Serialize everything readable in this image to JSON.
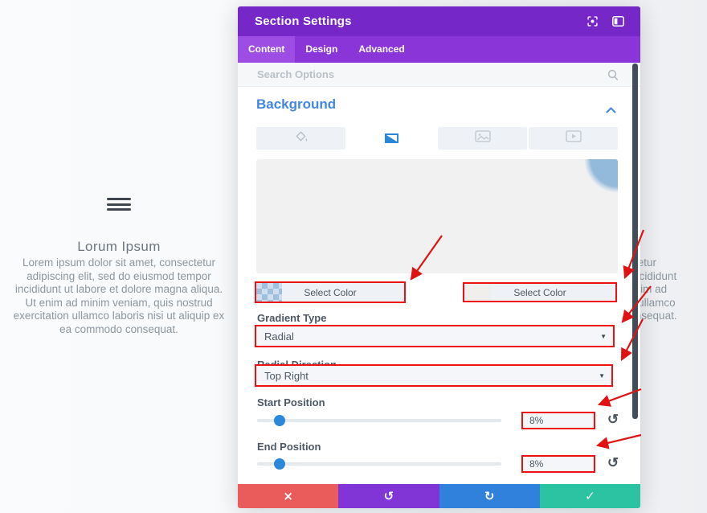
{
  "page": {
    "heading": "Lorum Ipsum",
    "paragraph": "Lorem ipsum dolor sit amet, consectetur adipiscing elit, sed do eiusmod tempor incididunt ut labore et dolore magna aliqua. Ut enim ad minim veniam, quis nostrud exercitation ullamco laboris nisi ut aliquip ex ea commodo consequat."
  },
  "modal": {
    "title": "Section Settings",
    "tabs": {
      "content": "Content",
      "design": "Design",
      "advanced": "Advanced",
      "active": "Content"
    },
    "search": {
      "placeholder": "Search Options"
    },
    "section": {
      "title": "Background",
      "state": "expanded"
    },
    "background_toggles": {
      "items": [
        "color",
        "gradient",
        "image",
        "video"
      ],
      "active": "gradient"
    },
    "gradient": {
      "first_color_label": "Select Color",
      "second_color_label": "Select Color",
      "type": {
        "label": "Gradient Type",
        "value": "Radial"
      },
      "direction": {
        "label": "Radial Direction",
        "value": "Top Right"
      },
      "start_position": {
        "label": "Start Position",
        "value": "8%",
        "percent": 8
      },
      "end_position": {
        "label": "End Position",
        "value": "8%",
        "percent": 8
      }
    },
    "icons": {
      "reset": "↺",
      "discard": "×",
      "undo": "↺",
      "redo": "↻",
      "save": "✓",
      "caret": "▼"
    }
  },
  "colors": {
    "header_purple": "#7527c8",
    "tabbar_purple": "#8a35d8",
    "active_tab_purple": "#9d4ce4",
    "accent_blue": "#2b87da",
    "heading_blue": "#4286e8",
    "annotation_red": "#ee1111",
    "button_red": "#ea5c5c",
    "button_purple": "#8135d6",
    "button_blue": "#3081dc",
    "button_green": "#2bc3a1",
    "gradient_preview_blue": "#94badb"
  }
}
